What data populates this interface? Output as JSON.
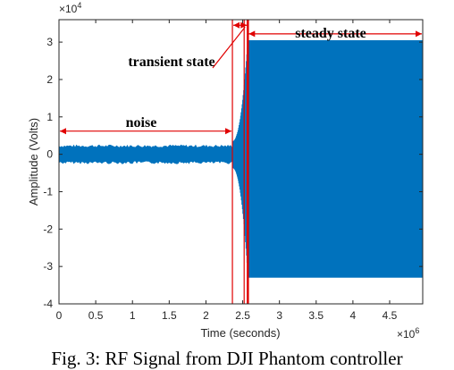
{
  "chart_data": {
    "type": "line",
    "xlabel": "Time (seconds)",
    "ylabel": "Amplitude (Volts)",
    "x_exponent": "×10^6",
    "y_exponent": "×10^4",
    "xlim": [
      0,
      4.95
    ],
    "ylim": [
      -4,
      3.6
    ],
    "x_ticks": [
      0,
      0.5,
      1,
      1.5,
      2,
      2.5,
      3,
      3.5,
      4,
      4.5
    ],
    "x_tick_labels": [
      "0",
      "0.5",
      "1",
      "1.5",
      "2",
      "2.5",
      "3",
      "3.5",
      "4",
      "4.5"
    ],
    "y_ticks": [
      -4,
      -3,
      -2,
      -1,
      0,
      1,
      2,
      3
    ],
    "y_tick_labels": [
      "-4",
      "-3",
      "-2",
      "-1",
      "0",
      "1",
      "2",
      "3"
    ],
    "series": [
      {
        "color": "#0072BD",
        "segments": {
          "noise": {
            "x_range": [
              0,
              2.36
            ],
            "amplitude": [
              -0.25,
              0.25
            ]
          },
          "transient": {
            "x_range": [
              2.36,
              2.57
            ],
            "amplitude_start": 0.35,
            "amplitude_end": 3.05
          },
          "steady": {
            "x_range": [
              2.57,
              4.95
            ],
            "amplitude": [
              -3.3,
              3.05
            ]
          }
        }
      }
    ],
    "annotations": {
      "noise_label": "noise",
      "transient_label": "transient state",
      "steady_label": "steady state",
      "boundary_lines_x": [
        2.36,
        2.52,
        2.57
      ],
      "boundary_color": "#e00000"
    },
    "grid": false
  },
  "caption": "Fig. 3: RF Signal from DJI Phantom controller"
}
